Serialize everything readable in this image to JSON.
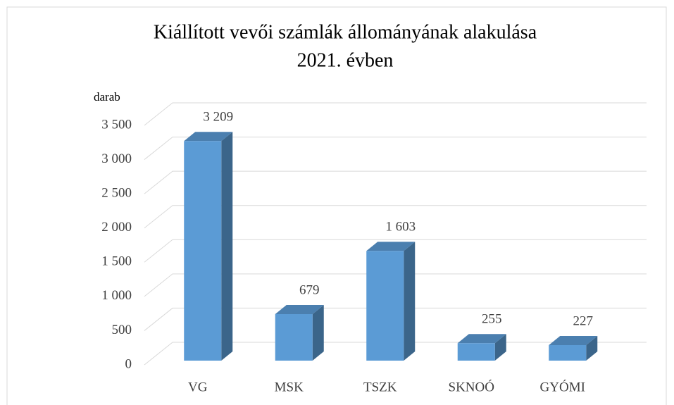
{
  "chart_data": {
    "type": "bar3d",
    "title": [
      "Kiállított vevői számlák állományának alakulása",
      "2021. évben"
    ],
    "y_label": "darab",
    "categories": [
      "VG",
      "MSK",
      "TSZK",
      "SKNOÓ",
      "GYÓMI"
    ],
    "values": [
      3209,
      679,
      1603,
      255,
      227
    ],
    "value_labels": [
      "3 209",
      "679",
      "1 603",
      "255",
      "227"
    ],
    "color": "#5b9bd5",
    "ylim": [
      0,
      3500
    ],
    "yticks": [
      0,
      500,
      {
        "value": 1000,
        "label": "1 000"
      },
      {
        "value": 1500,
        "label": "1 500"
      },
      {
        "value": 2000,
        "label": "2 000"
      },
      {
        "value": 2500,
        "label": "2 500"
      },
      {
        "value": 3000,
        "label": "3 000"
      },
      {
        "value": 3500,
        "label": "3 500"
      }
    ],
    "grid": true
  }
}
